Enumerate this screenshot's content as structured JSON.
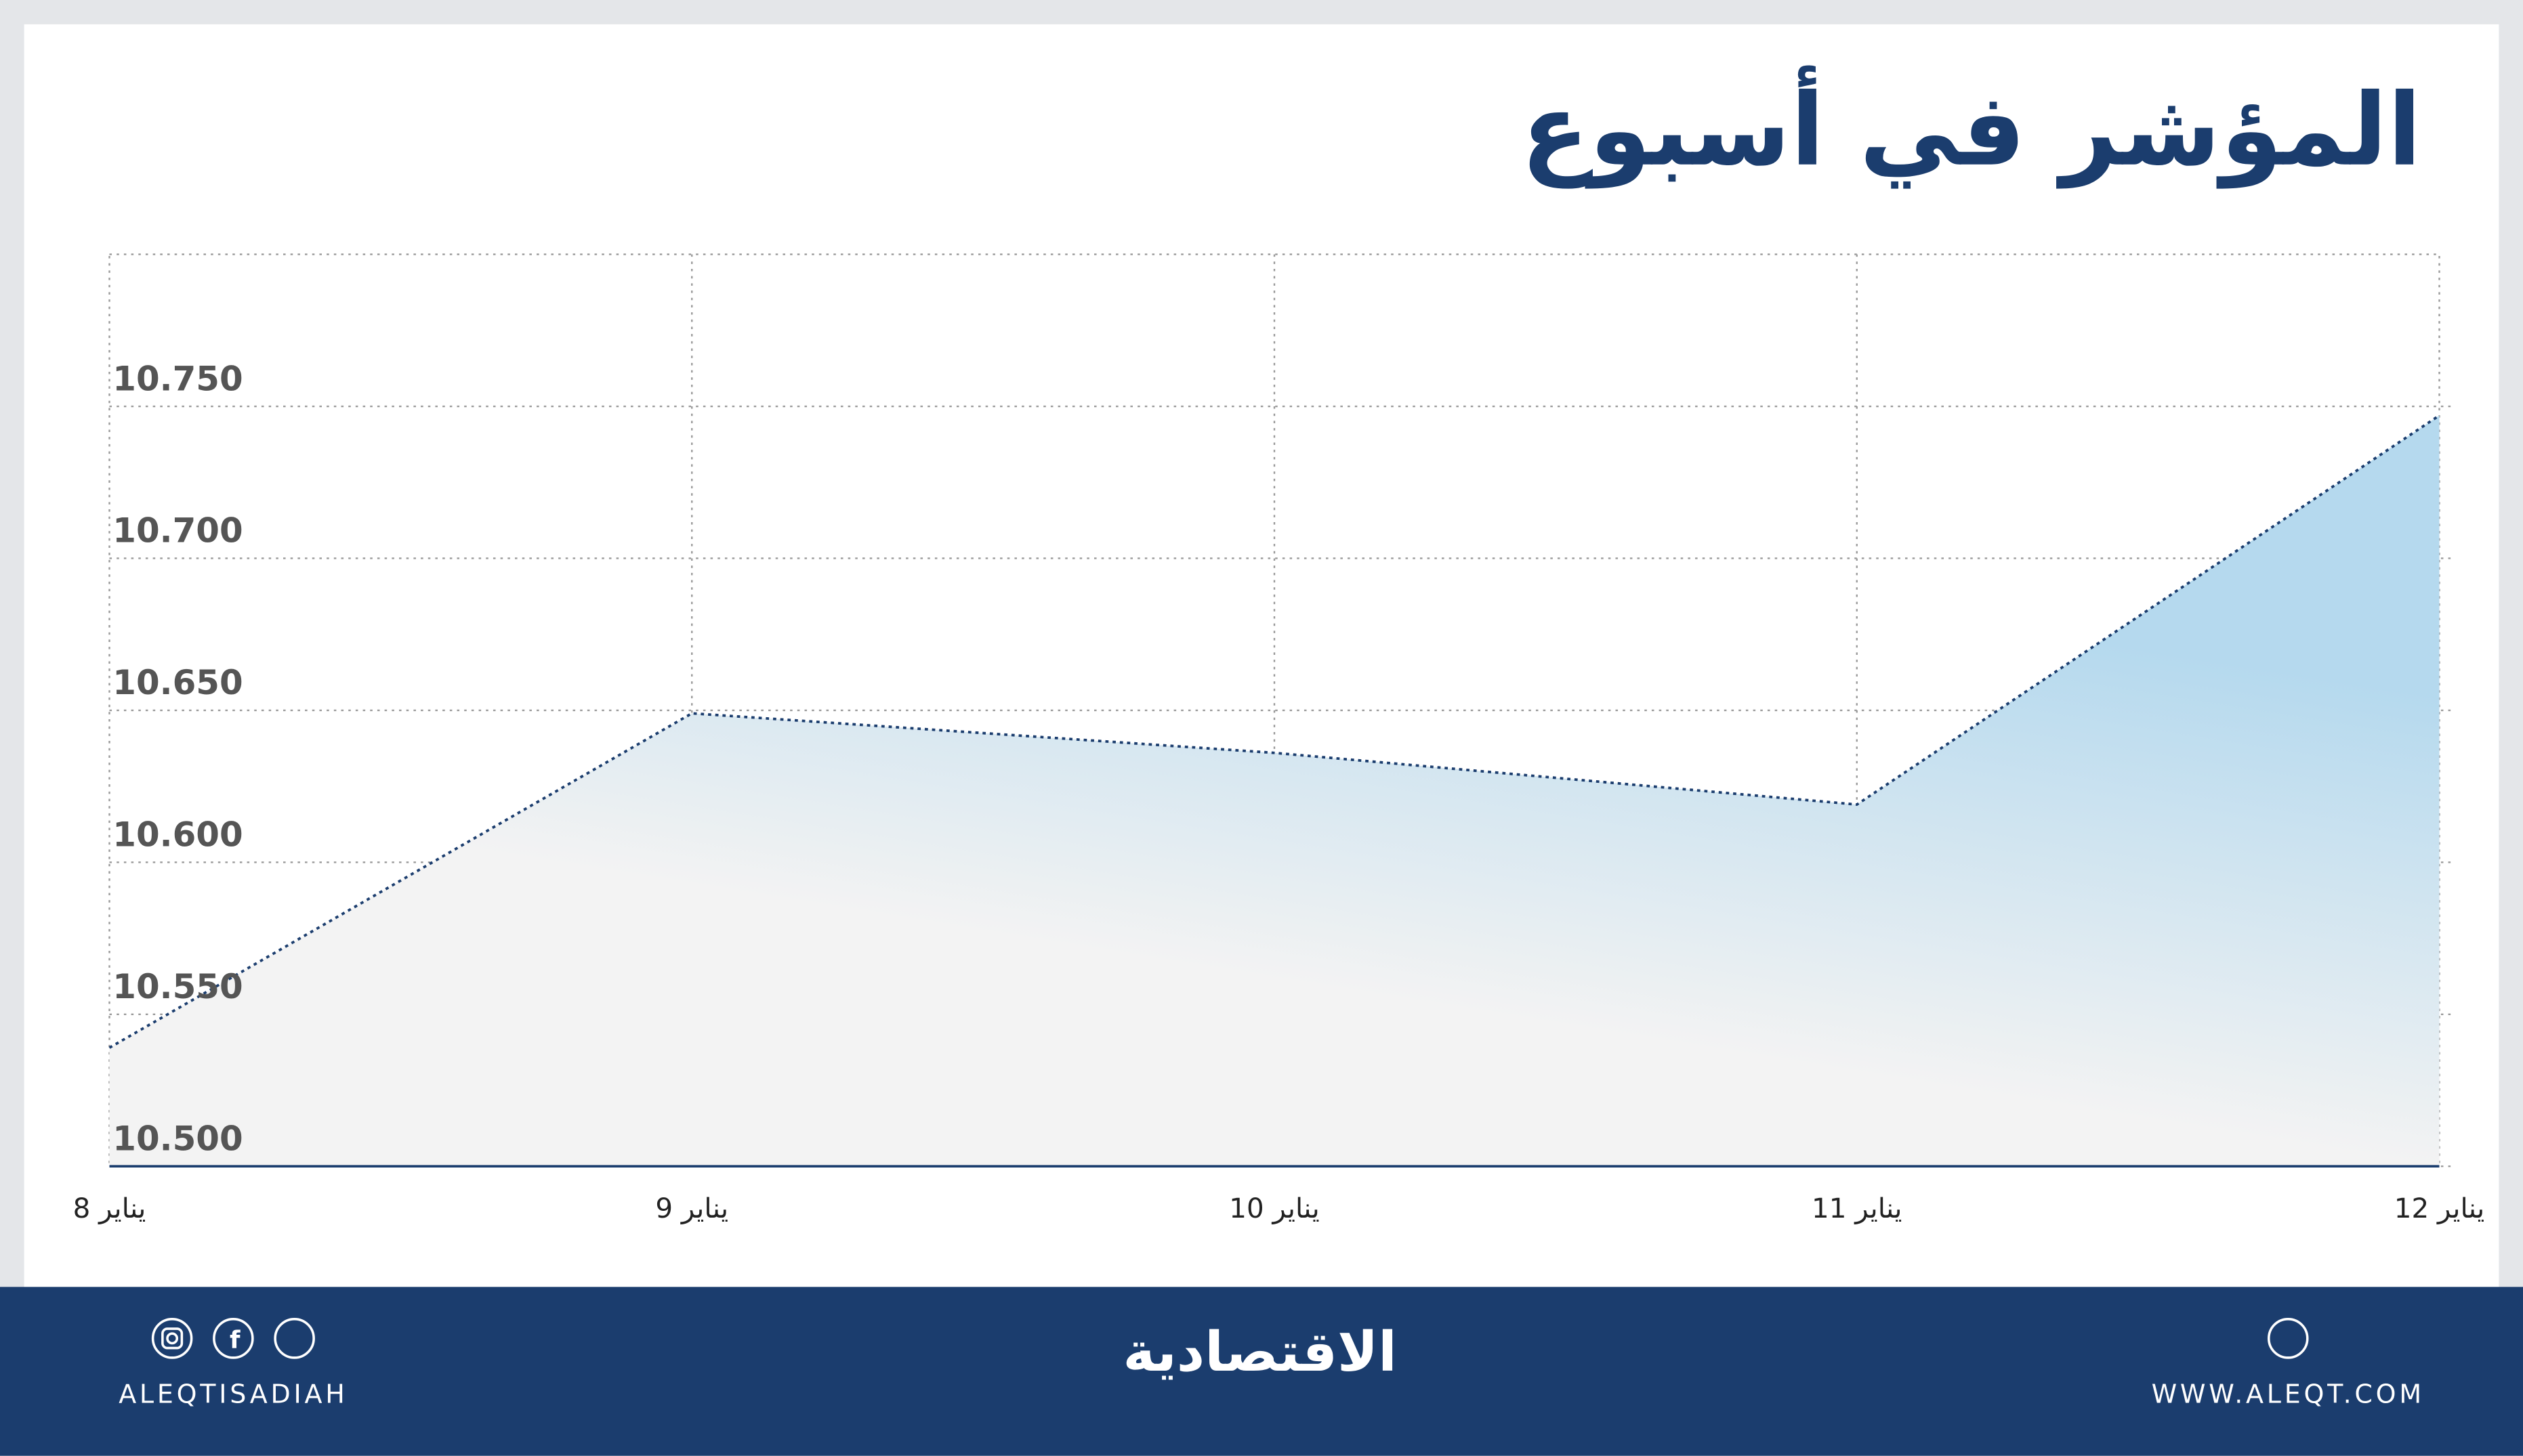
{
  "chart_data": {
    "type": "area",
    "title": "المؤشر في أسبوع",
    "categories": [
      "8 يناير",
      "9 يناير",
      "10 يناير",
      "11 يناير",
      "12 يناير"
    ],
    "values": [
      10.539,
      10.649,
      10.636,
      10.619,
      10.747
    ],
    "color": "#1b3d6e",
    "ylim": [
      10.5,
      10.8
    ],
    "yticks": [
      {
        "value": 10.5,
        "label": "10.500"
      },
      {
        "value": 10.55,
        "label": "10.550"
      },
      {
        "value": 10.6,
        "label": "10.600"
      },
      {
        "value": 10.65,
        "label": "10.650"
      },
      {
        "value": 10.7,
        "label": "10.700"
      },
      {
        "value": 10.75,
        "label": "10.750"
      }
    ],
    "grid": true
  },
  "footer": {
    "handle": "ALEQTISADIAH",
    "logo": "الاقتصادية",
    "website": "WWW.ALEQT.COM"
  }
}
